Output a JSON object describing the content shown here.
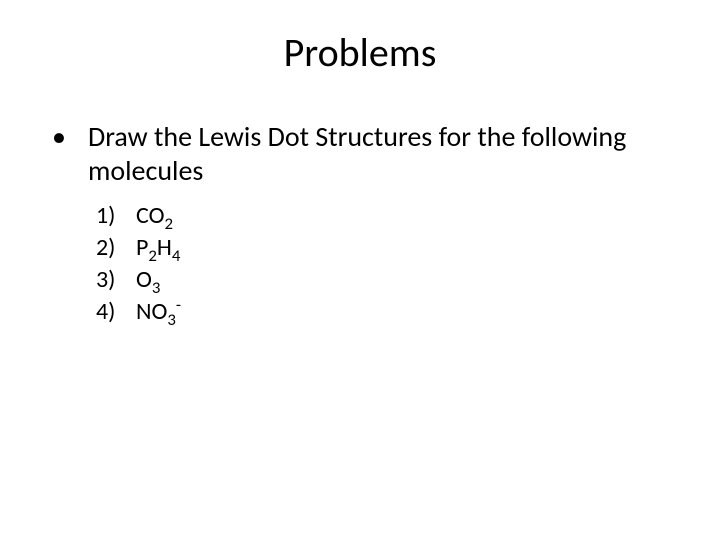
{
  "title": "Problems",
  "bullet": {
    "marker": "•",
    "text": "Draw the Lewis Dot Structures for the following molecules"
  },
  "items": [
    {
      "num": "1)",
      "formula_html": "CO<sub>2</sub>"
    },
    {
      "num": "2)",
      "formula_html": "P<sub>2</sub>H<sub>4</sub>"
    },
    {
      "num": "3)",
      "formula_html": "O<sub>3</sub>"
    },
    {
      "num": "4)",
      "formula_html": "NO<sub>3</sub><sup>-</sup>"
    }
  ],
  "style": {
    "background_color": "#ffffff",
    "text_color": "#000000",
    "title_fontsize": 40,
    "body_fontsize": 28,
    "list_fontsize": 24
  }
}
